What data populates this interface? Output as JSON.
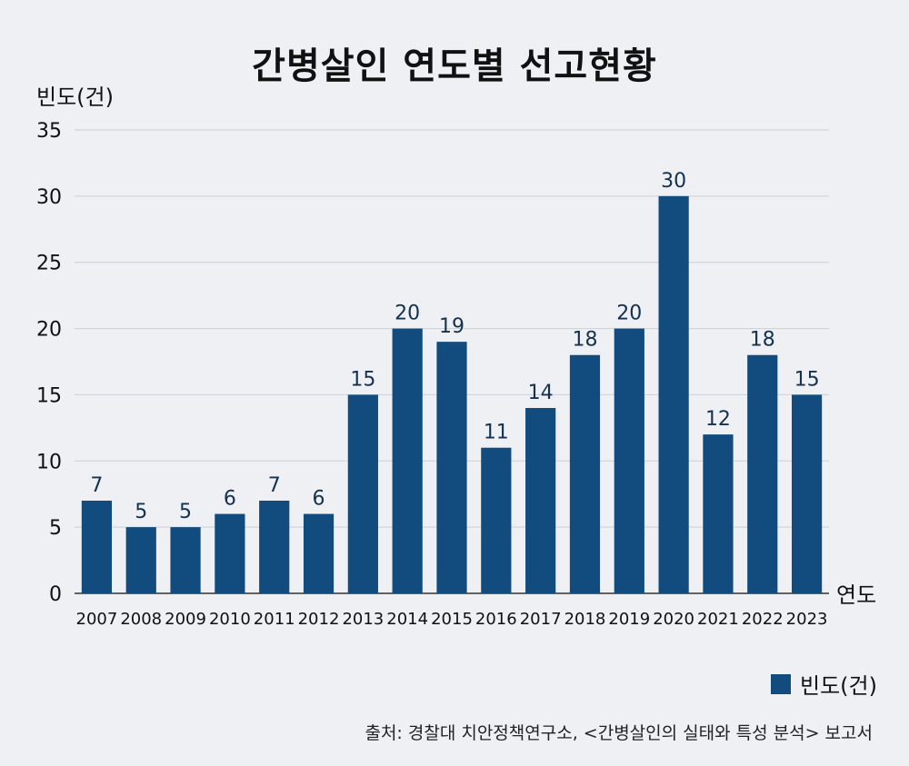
{
  "chart_data": {
    "type": "bar",
    "title": "간병살인 연도별 선고현황",
    "ylabel": "빈도(건)",
    "xlabel": "연도",
    "categories": [
      "2007",
      "2008",
      "2009",
      "2010",
      "2011",
      "2012",
      "2013",
      "2014",
      "2015",
      "2016",
      "2017",
      "2018",
      "2019",
      "2020",
      "2021",
      "2022",
      "2023"
    ],
    "series": [
      {
        "name": "빈도(건)",
        "values": [
          7,
          5,
          5,
          6,
          7,
          6,
          15,
          20,
          19,
          11,
          14,
          18,
          20,
          30,
          12,
          18,
          15
        ]
      }
    ],
    "ylim": [
      0,
      35
    ],
    "yticks": [
      0,
      5,
      10,
      15,
      20,
      25,
      30,
      35
    ],
    "grid": true,
    "legend_position": "bottom-right",
    "bar_color": "#124b7d",
    "grid_color": "#c9cfd8"
  },
  "source": "출처: 경찰대 치안정책연구소, <간병살인의 실태와 특성 분석> 보고서"
}
